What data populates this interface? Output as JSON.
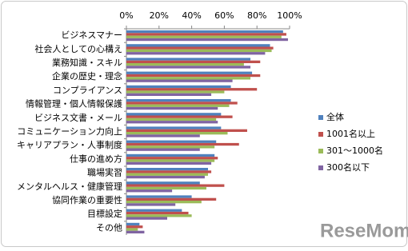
{
  "chart_data": {
    "type": "hbar",
    "categories": [
      "ビジネスマナー",
      "社会人としての心構え",
      "業務知識・スキル",
      "企業の歴史・理念",
      "コンプライアンス",
      "情報管理・個人情報保護",
      "ビジネス文書・メール",
      "コミュニケーション力向上",
      "キャリアプラン・人事制度",
      "仕事の進め方",
      "職場実習",
      "メンタルヘルス・健康管理",
      "協同作業の重要性",
      "目標設定",
      "その他"
    ],
    "series": [
      {
        "name": "全体",
        "color": "#4f81bd",
        "values": [
          96,
          88,
          76,
          77,
          64,
          64,
          58,
          58,
          55,
          54,
          50,
          45,
          40,
          34,
          8
        ]
      },
      {
        "name": "1001名以上",
        "color": "#c0504d",
        "values": [
          98,
          90,
          82,
          82,
          80,
          68,
          65,
          74,
          69,
          56,
          52,
          60,
          55,
          38,
          10
        ]
      },
      {
        "name": "301～1000名",
        "color": "#9bbb59",
        "values": [
          95,
          89,
          72,
          76,
          60,
          63,
          55,
          62,
          54,
          54,
          50,
          49,
          46,
          40,
          7
        ]
      },
      {
        "name": "300名以下",
        "color": "#8064a2",
        "values": [
          99,
          85,
          76,
          65,
          52,
          56,
          56,
          45,
          45,
          52,
          48,
          28,
          30,
          25,
          11
        ]
      }
    ],
    "xlim": [
      0,
      100
    ],
    "xticks": [
      {
        "value": 0,
        "label": "0%"
      },
      {
        "value": 20,
        "label": "20%"
      },
      {
        "value": 40,
        "label": "40%"
      },
      {
        "value": 60,
        "label": "60%"
      },
      {
        "value": 80,
        "label": "80%"
      },
      {
        "value": 100,
        "label": "100%"
      }
    ],
    "grid": false,
    "legend": "right"
  },
  "watermark": "ReseMom"
}
